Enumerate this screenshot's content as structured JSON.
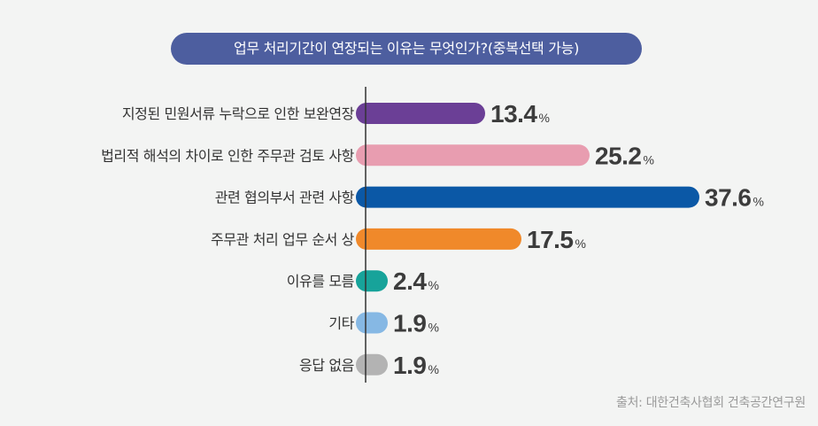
{
  "chart_data": {
    "type": "bar",
    "orientation": "horizontal",
    "title": "업무 처리기간이 연장되는 이유는 무엇인가?(중복선택 가능)",
    "categories": [
      "지정된 민원서류 누락으로 인한 보완연장",
      "법리적 해석의 차이로 인한 주무관 검토 사항",
      "관련 협의부서 관련 사항",
      "주무관 처리 업무 순서 상",
      "이유를 모름",
      "기타",
      "응답 없음"
    ],
    "values": [
      13.4,
      25.2,
      37.6,
      17.5,
      2.4,
      1.9,
      1.9
    ],
    "value_labels": [
      "13.4",
      "25.2",
      "37.6",
      "17.5",
      "2.4",
      "1.9",
      "1.9"
    ],
    "unit": "%",
    "colors": [
      "#6b3f96",
      "#e89db0",
      "#0b58a6",
      "#f0892a",
      "#17a39a",
      "#86b8e4",
      "#b3b3b3"
    ],
    "xlim": [
      0,
      37.6
    ],
    "grid": false
  },
  "source": "출처: 대한건축사협회 건축공간연구원"
}
